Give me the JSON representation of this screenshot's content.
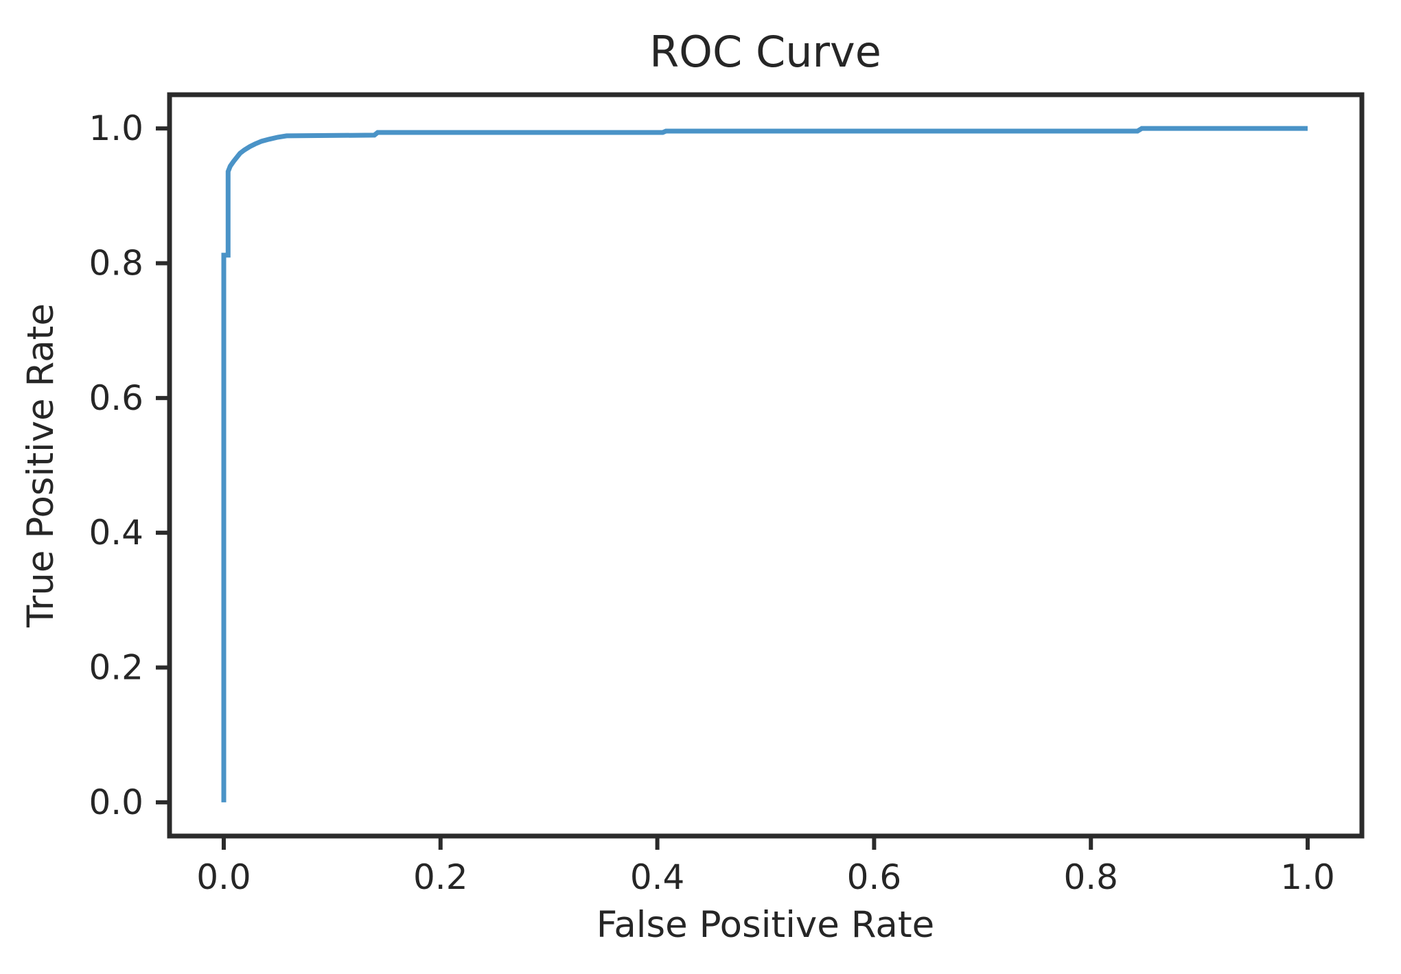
{
  "chart_data": {
    "type": "line",
    "title": "ROC Curve",
    "xlabel": "False Positive Rate",
    "ylabel": "True Positive Rate",
    "xlim": [
      -0.05,
      1.05
    ],
    "ylim": [
      -0.05,
      1.05
    ],
    "xticks": [
      0.0,
      0.2,
      0.4,
      0.6,
      0.8,
      1.0
    ],
    "xtick_labels": [
      "0.0",
      "0.2",
      "0.4",
      "0.6",
      "0.8",
      "1.0"
    ],
    "yticks": [
      0.0,
      0.2,
      0.4,
      0.6,
      0.8,
      1.0
    ],
    "ytick_labels": [
      "0.0",
      "0.2",
      "0.4",
      "0.6",
      "0.8",
      "1.0"
    ],
    "grid": false,
    "legend": "none",
    "colors": {
      "curve": "#4a93c7",
      "spine": "#2b2b2b",
      "text": "#262626",
      "background": "#ffffff"
    },
    "series": [
      {
        "name": "ROC curve",
        "color": "#4a93c7",
        "points": [
          [
            0.0,
            0.0
          ],
          [
            0.0,
            0.812
          ],
          [
            0.004,
            0.812
          ],
          [
            0.004,
            0.936
          ],
          [
            0.006,
            0.944
          ],
          [
            0.009,
            0.951
          ],
          [
            0.012,
            0.957
          ],
          [
            0.015,
            0.963
          ],
          [
            0.019,
            0.968
          ],
          [
            0.024,
            0.973
          ],
          [
            0.029,
            0.977
          ],
          [
            0.035,
            0.981
          ],
          [
            0.042,
            0.984
          ],
          [
            0.05,
            0.987
          ],
          [
            0.058,
            0.989
          ],
          [
            0.139,
            0.99
          ],
          [
            0.142,
            0.994
          ],
          [
            0.405,
            0.994
          ],
          [
            0.408,
            0.996
          ],
          [
            0.843,
            0.996
          ],
          [
            0.847,
            1.0
          ],
          [
            1.0,
            1.0
          ]
        ]
      }
    ]
  }
}
